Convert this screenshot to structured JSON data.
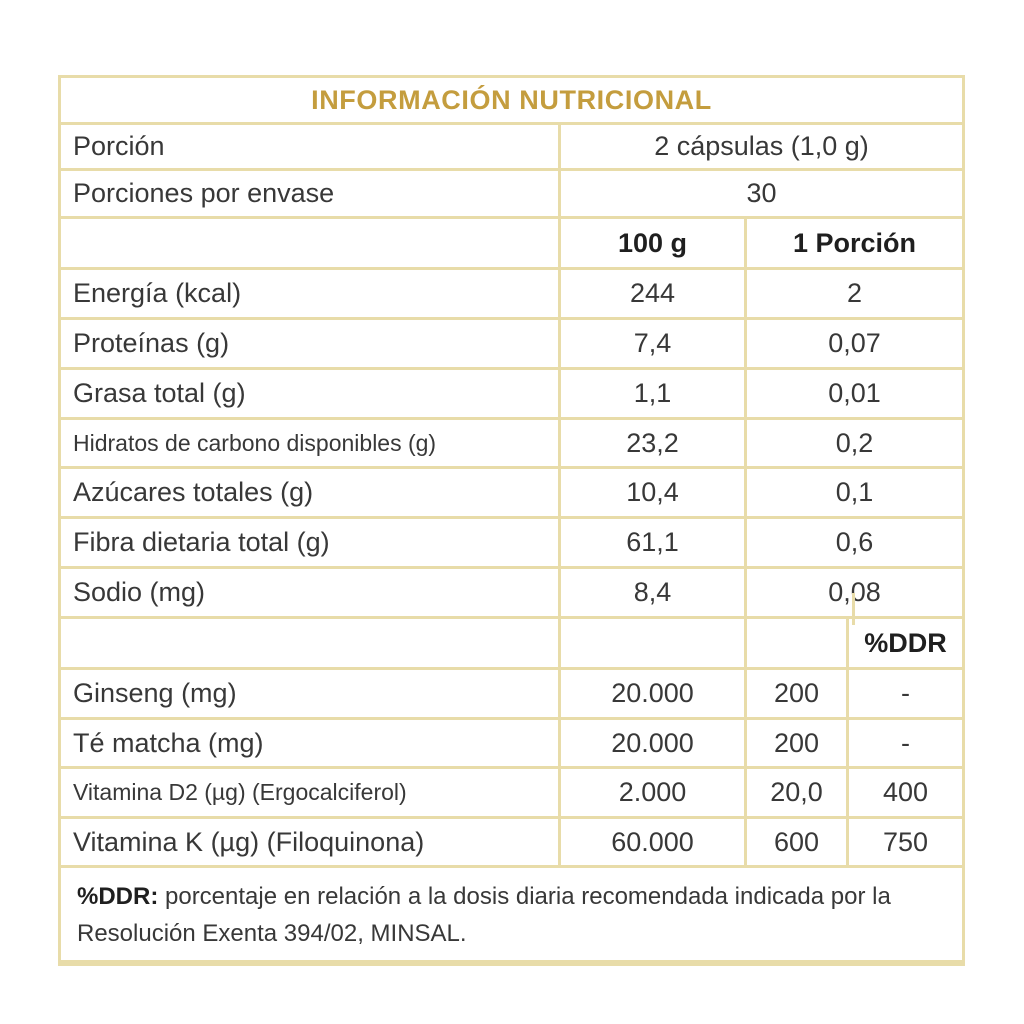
{
  "title": "INFORMACIÓN NUTRICIONAL",
  "colors": {
    "accent_gold": "#c49d3e",
    "border_tan": "#e8dca9",
    "text_dark": "#383838"
  },
  "serving_info": {
    "rows": [
      {
        "label": "Porción",
        "value": "2 cápsulas (1,0 g)"
      },
      {
        "label": "Porciones por envase",
        "value": "30"
      }
    ]
  },
  "nutrition": {
    "col_headers": {
      "per_100g": "100 g",
      "per_serving": "1 Porción"
    },
    "rows": [
      {
        "label": "Energía (kcal)",
        "per_100g": "244",
        "per_serving": "2"
      },
      {
        "label": "Proteínas (g)",
        "per_100g": "7,4",
        "per_serving": "0,07"
      },
      {
        "label": "Grasa total (g)",
        "per_100g": "1,1",
        "per_serving": "0,01"
      },
      {
        "label": "Hidratos de carbono disponibles (g)",
        "per_100g": "23,2",
        "per_serving": "0,2"
      },
      {
        "label": "Azúcares totales (g)",
        "per_100g": "10,4",
        "per_serving": "0,1"
      },
      {
        "label": "Fibra dietaria total (g)",
        "per_100g": "61,1",
        "per_serving": "0,6"
      },
      {
        "label": "Sodio (mg)",
        "per_100g": "8,4",
        "per_serving": "0,08"
      }
    ]
  },
  "actives": {
    "ddr_header": "%DDR",
    "rows": [
      {
        "label": "Ginseng (mg)",
        "per_100g": "20.000",
        "per_serving": "200",
        "ddr": "-"
      },
      {
        "label": "Té matcha (mg)",
        "per_100g": "20.000",
        "per_serving": "200",
        "ddr": "-"
      },
      {
        "label": "Vitamina D2 (µg) (Ergocalciferol)",
        "per_100g": "2.000",
        "per_serving": "20,0",
        "ddr": "400"
      },
      {
        "label": "Vitamina K (µg) (Filoquinona)",
        "per_100g": "60.000",
        "per_serving": "600",
        "ddr": "750"
      }
    ]
  },
  "footnote": {
    "bold_prefix": "%DDR:",
    "text": " porcentaje en relación a la dosis diaria recomendada indicada por la Resolución Exenta 394/02, MINSAL."
  }
}
